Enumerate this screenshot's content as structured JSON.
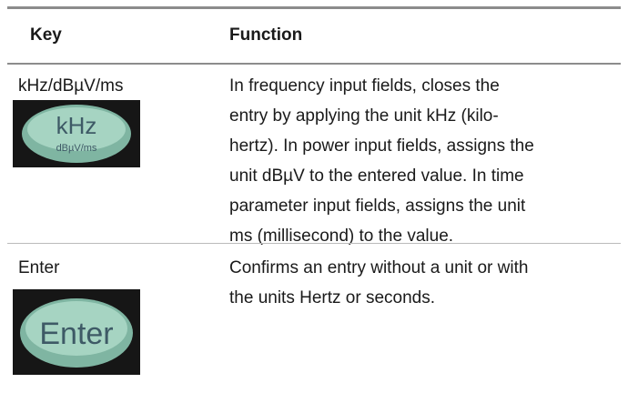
{
  "table": {
    "header": [
      "Key",
      "Function"
    ],
    "rows": [
      {
        "key": "kHz/dBµV/ms",
        "button": {
          "main": "kHz",
          "sub": "dBµV/ms"
        },
        "function": [
          "In frequency input fields, closes the",
          "entry by applying the unit kHz (kilo-",
          "hertz). In power input fields, assigns the",
          "unit dBµV to the entered value. In time",
          "parameter input fields, assigns the unit",
          "ms (millisecond) to the value."
        ]
      },
      {
        "key": "Enter",
        "button": {
          "main": "Enter"
        },
        "function": [
          "Confirms an entry without a unit or with",
          "the units Hertz or seconds."
        ]
      }
    ]
  }
}
